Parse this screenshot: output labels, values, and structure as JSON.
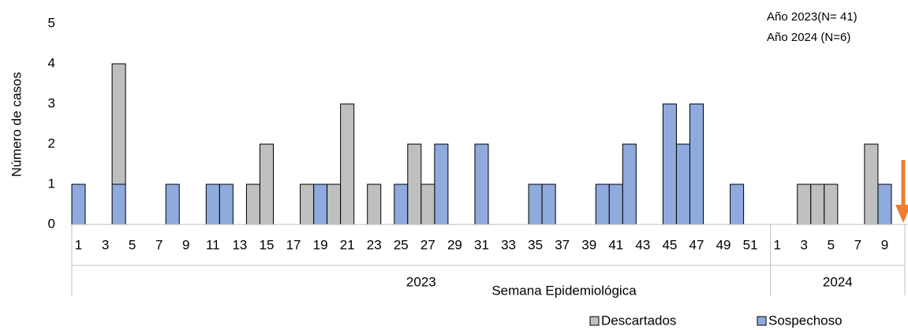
{
  "chart_data": {
    "type": "stacked_bar",
    "y_label": "Número de casos",
    "x_label": "Semana Epidemiológica",
    "annotations": [
      "Año 2023(N= 41)",
      "Año 2024 (N=6)"
    ],
    "groups": [
      "2023",
      "2024"
    ],
    "categories": [
      "1",
      null,
      "3",
      null,
      "5",
      null,
      "7",
      null,
      "9",
      null,
      "11",
      null,
      "13",
      null,
      "15",
      null,
      "17",
      null,
      "19",
      null,
      "21",
      null,
      "23",
      null,
      "25",
      null,
      "27",
      null,
      "29",
      null,
      "31",
      null,
      "33",
      null,
      "35",
      null,
      "37",
      null,
      "39",
      null,
      "41",
      null,
      "43",
      null,
      "45",
      null,
      "47",
      null,
      "49",
      null,
      "51",
      null,
      "1",
      null,
      "3",
      null,
      "5",
      null,
      "7",
      null,
      "9",
      null
    ],
    "series": [
      {
        "name": "Sospechoso",
        "color": "#8faadc",
        "values": [
          1,
          0,
          0,
          1,
          0,
          0,
          0,
          1,
          0,
          0,
          1,
          1,
          0,
          0,
          0,
          0,
          0,
          0,
          1,
          0,
          0,
          0,
          0,
          0,
          1,
          0,
          0,
          2,
          0,
          0,
          2,
          0,
          0,
          0,
          1,
          1,
          0,
          0,
          0,
          1,
          1,
          2,
          0,
          0,
          3,
          2,
          3,
          0,
          0,
          1,
          0,
          0,
          0,
          0,
          0,
          0,
          0,
          0,
          0,
          0,
          1,
          0
        ]
      },
      {
        "name": "Descartados",
        "color": "#bfbfbf",
        "values": [
          0,
          0,
          0,
          3,
          0,
          0,
          0,
          0,
          0,
          0,
          0,
          0,
          0,
          1,
          2,
          0,
          0,
          1,
          0,
          1,
          3,
          0,
          1,
          0,
          0,
          2,
          1,
          0,
          0,
          0,
          0,
          0,
          0,
          0,
          0,
          0,
          0,
          0,
          0,
          0,
          0,
          0,
          0,
          0,
          0,
          0,
          0,
          0,
          0,
          0,
          0,
          0,
          0,
          0,
          1,
          1,
          1,
          0,
          0,
          2,
          0,
          0
        ]
      }
    ],
    "ylim": [
      0,
      5
    ],
    "yticks": [
      0,
      1,
      2,
      3,
      4,
      5
    ],
    "grid": false
  }
}
